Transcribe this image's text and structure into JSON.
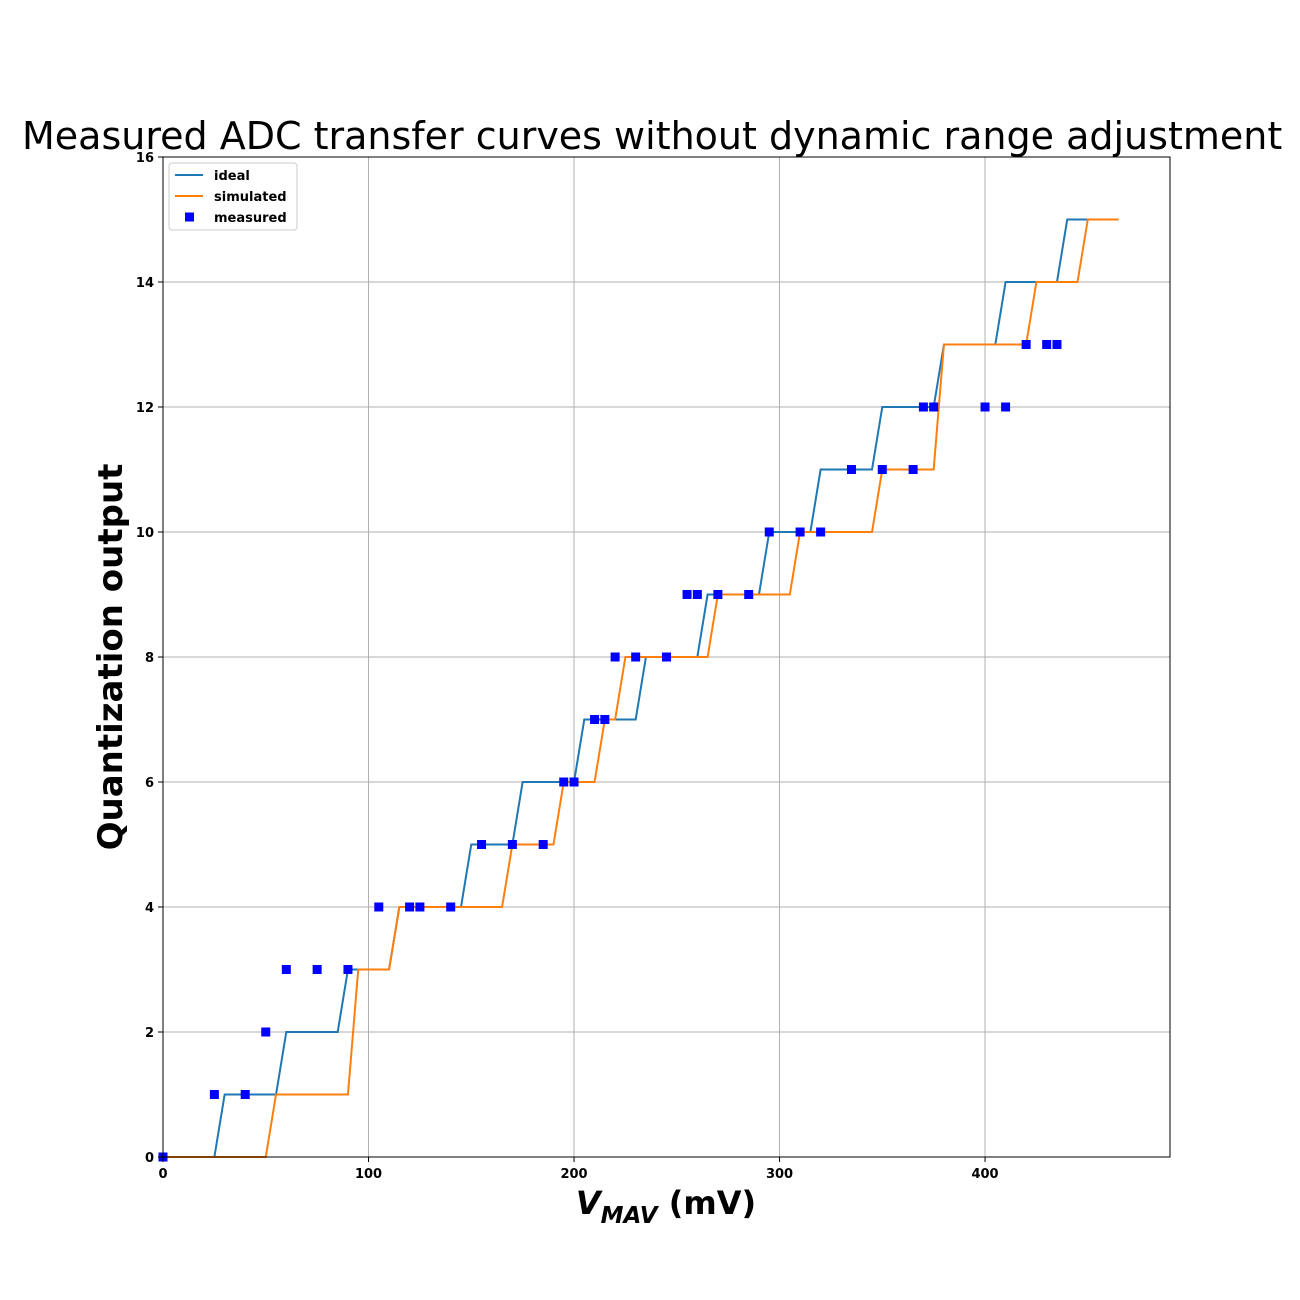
{
  "chart_data": {
    "type": "line",
    "title": "Measured ADC transfer curves without dynamic range adjustment",
    "xlabel": {
      "main": "V",
      "sub": "MAV",
      "unit": " (mV)"
    },
    "ylabel": "Quantization output",
    "xlim": [
      0,
      490
    ],
    "ylim": [
      0,
      16
    ],
    "xticks": [
      0,
      100,
      200,
      300,
      400
    ],
    "yticks": [
      0,
      2,
      4,
      6,
      8,
      10,
      12,
      14,
      16
    ],
    "grid": true,
    "legend_position": "top-left",
    "series": [
      {
        "name": "ideal",
        "type": "line",
        "color": "#1f77b4",
        "x": [
          0,
          25,
          30,
          55,
          60,
          85,
          90,
          110,
          115,
          145,
          150,
          170,
          175,
          200,
          205,
          230,
          235,
          260,
          265,
          290,
          295,
          315,
          320,
          345,
          350,
          375,
          380,
          405,
          410,
          435,
          440,
          465
        ],
        "y": [
          0,
          0,
          1,
          1,
          2,
          2,
          3,
          3,
          4,
          4,
          5,
          5,
          6,
          6,
          7,
          7,
          8,
          8,
          9,
          9,
          10,
          10,
          11,
          11,
          12,
          12,
          13,
          13,
          14,
          14,
          15,
          15
        ]
      },
      {
        "name": "simulated",
        "type": "line",
        "color": "#ff7f0e",
        "x": [
          0,
          50,
          55,
          90,
          95,
          110,
          115,
          165,
          170,
          190,
          195,
          210,
          215,
          220,
          225,
          265,
          270,
          305,
          310,
          345,
          350,
          375,
          380,
          420,
          425,
          445,
          450,
          465
        ],
        "y": [
          0,
          0,
          1,
          1,
          3,
          3,
          4,
          4,
          5,
          5,
          6,
          6,
          7,
          7,
          8,
          8,
          9,
          9,
          10,
          10,
          11,
          11,
          13,
          13,
          14,
          14,
          15,
          15
        ]
      },
      {
        "name": "measured",
        "type": "scatter",
        "color": "#0000ff",
        "x": [
          0,
          25,
          40,
          50,
          60,
          75,
          90,
          105,
          120,
          125,
          140,
          155,
          170,
          185,
          195,
          200,
          210,
          215,
          220,
          230,
          245,
          255,
          260,
          270,
          285,
          295,
          310,
          320,
          335,
          350,
          365,
          370,
          375,
          400,
          410,
          420,
          430,
          435
        ],
        "y": [
          0,
          1,
          1,
          2,
          3,
          3,
          3,
          4,
          4,
          4,
          4,
          5,
          5,
          5,
          6,
          6,
          7,
          7,
          8,
          8,
          8,
          9,
          9,
          9,
          9,
          10,
          10,
          10,
          11,
          11,
          11,
          12,
          12,
          12,
          12,
          13,
          13,
          13
        ]
      }
    ]
  }
}
